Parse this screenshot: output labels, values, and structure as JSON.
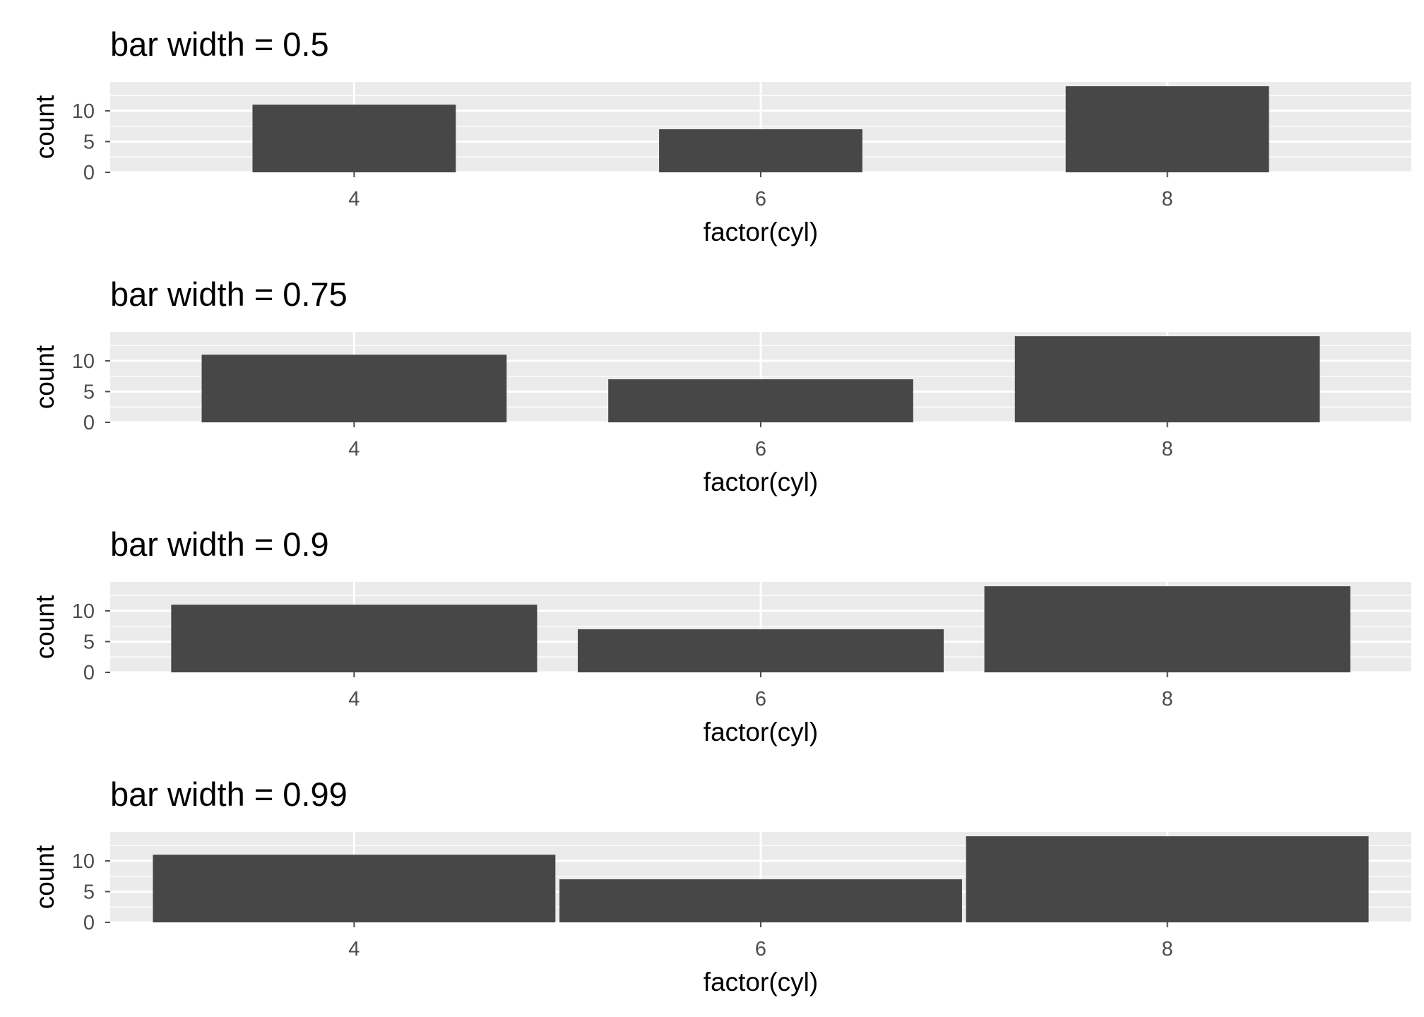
{
  "figure": {
    "panel_background": "#ebebeb",
    "bar_color": "#474747",
    "grid_color": "#ffffff",
    "text_color": "#000000",
    "tick_color": "#4d4d4d"
  },
  "chart_data": [
    {
      "type": "bar",
      "title": "bar width = 0.5",
      "xlabel": "factor(cyl)",
      "ylabel": "count",
      "categories": [
        "4",
        "6",
        "8"
      ],
      "values": [
        11,
        7,
        14
      ],
      "bar_width": 0.5,
      "yticks": [
        0,
        5,
        10
      ],
      "ylim": [
        0,
        14.7
      ],
      "grid": true
    },
    {
      "type": "bar",
      "title": "bar width = 0.75",
      "xlabel": "factor(cyl)",
      "ylabel": "count",
      "categories": [
        "4",
        "6",
        "8"
      ],
      "values": [
        11,
        7,
        14
      ],
      "bar_width": 0.75,
      "yticks": [
        0,
        5,
        10
      ],
      "ylim": [
        0,
        14.7
      ],
      "grid": true
    },
    {
      "type": "bar",
      "title": "bar width = 0.9",
      "xlabel": "factor(cyl)",
      "ylabel": "count",
      "categories": [
        "4",
        "6",
        "8"
      ],
      "values": [
        11,
        7,
        14
      ],
      "bar_width": 0.9,
      "yticks": [
        0,
        5,
        10
      ],
      "ylim": [
        0,
        14.7
      ],
      "grid": true
    },
    {
      "type": "bar",
      "title": "bar width = 0.99",
      "xlabel": "factor(cyl)",
      "ylabel": "count",
      "categories": [
        "4",
        "6",
        "8"
      ],
      "values": [
        11,
        7,
        14
      ],
      "bar_width": 0.99,
      "yticks": [
        0,
        5,
        10
      ],
      "ylim": [
        0,
        14.7
      ],
      "grid": true
    }
  ]
}
